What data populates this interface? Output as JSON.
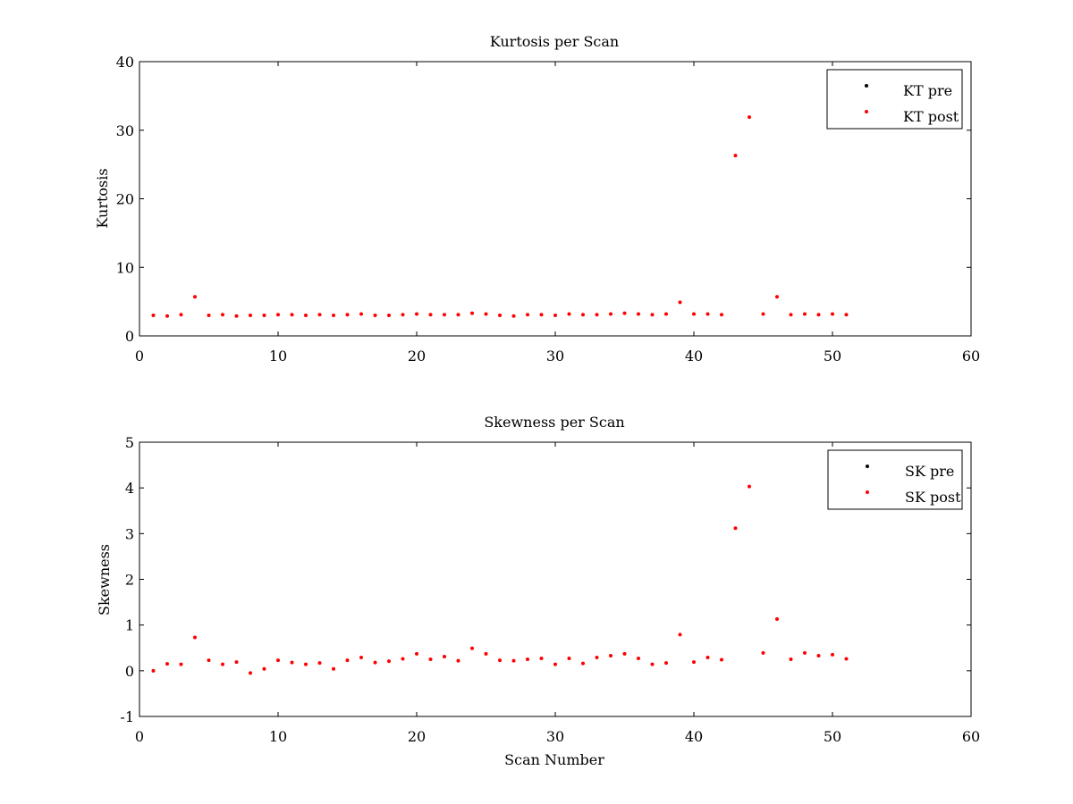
{
  "chart_data": [
    {
      "type": "scatter",
      "title": "Kurtosis per Scan",
      "xlabel": "",
      "ylabel": "Kurtosis",
      "xlim": [
        0,
        60
      ],
      "ylim": [
        0,
        40
      ],
      "xticks": [
        "0",
        "10",
        "20",
        "30",
        "40",
        "50",
        "60"
      ],
      "yticks": [
        "0",
        "10",
        "20",
        "30",
        "40"
      ],
      "grid": false,
      "legend_position": "top-right",
      "series": [
        {
          "name": "KT pre",
          "color": "#000000",
          "x": [],
          "y": []
        },
        {
          "name": "KT post",
          "color": "#ff0000",
          "x": [
            1,
            2,
            3,
            4,
            5,
            6,
            7,
            8,
            9,
            10,
            11,
            12,
            13,
            14,
            15,
            16,
            17,
            18,
            19,
            20,
            21,
            22,
            23,
            24,
            25,
            26,
            27,
            28,
            29,
            30,
            31,
            32,
            33,
            34,
            35,
            36,
            37,
            38,
            39,
            40,
            41,
            42,
            43,
            44,
            45,
            46,
            47,
            48,
            49,
            50,
            51
          ],
          "y": [
            3.0,
            2.9,
            3.1,
            5.7,
            3.0,
            3.1,
            2.9,
            3.0,
            3.0,
            3.1,
            3.1,
            3.0,
            3.1,
            3.0,
            3.1,
            3.2,
            3.0,
            3.0,
            3.1,
            3.2,
            3.1,
            3.1,
            3.1,
            3.3,
            3.2,
            3.0,
            2.9,
            3.1,
            3.1,
            3.0,
            3.2,
            3.1,
            3.1,
            3.2,
            3.3,
            3.2,
            3.1,
            3.2,
            4.9,
            3.2,
            3.2,
            3.1,
            26.3,
            31.9,
            3.2,
            5.7,
            3.1,
            3.2,
            3.1,
            3.2,
            3.1
          ]
        }
      ]
    },
    {
      "type": "scatter",
      "title": "Skewness per Scan",
      "xlabel": "Scan Number",
      "ylabel": "Skewness",
      "xlim": [
        0,
        60
      ],
      "ylim": [
        -1,
        5
      ],
      "xticks": [
        "0",
        "10",
        "20",
        "30",
        "40",
        "50",
        "60"
      ],
      "yticks": [
        "-1",
        "0",
        "1",
        "2",
        "3",
        "4",
        "5"
      ],
      "grid": false,
      "legend_position": "top-right",
      "series": [
        {
          "name": "SK pre",
          "color": "#000000",
          "x": [],
          "y": []
        },
        {
          "name": "SK post",
          "color": "#ff0000",
          "x": [
            1,
            2,
            3,
            4,
            5,
            6,
            7,
            8,
            9,
            10,
            11,
            12,
            13,
            14,
            15,
            16,
            17,
            18,
            19,
            20,
            21,
            22,
            23,
            24,
            25,
            26,
            27,
            28,
            29,
            30,
            31,
            32,
            33,
            34,
            35,
            36,
            37,
            38,
            39,
            40,
            41,
            42,
            43,
            44,
            45,
            46,
            47,
            48,
            49,
            50,
            51
          ],
          "y": [
            0.0,
            0.15,
            0.14,
            0.73,
            0.23,
            0.14,
            0.19,
            -0.05,
            0.04,
            0.23,
            0.18,
            0.14,
            0.17,
            0.04,
            0.23,
            0.29,
            0.18,
            0.21,
            0.26,
            0.37,
            0.25,
            0.31,
            0.22,
            0.49,
            0.37,
            0.23,
            0.22,
            0.25,
            0.27,
            0.14,
            0.27,
            0.16,
            0.29,
            0.33,
            0.37,
            0.27,
            0.14,
            0.17,
            0.79,
            0.19,
            0.29,
            0.24,
            3.12,
            4.03,
            0.39,
            1.13,
            0.25,
            0.39,
            0.33,
            0.35,
            0.26
          ]
        }
      ]
    }
  ]
}
